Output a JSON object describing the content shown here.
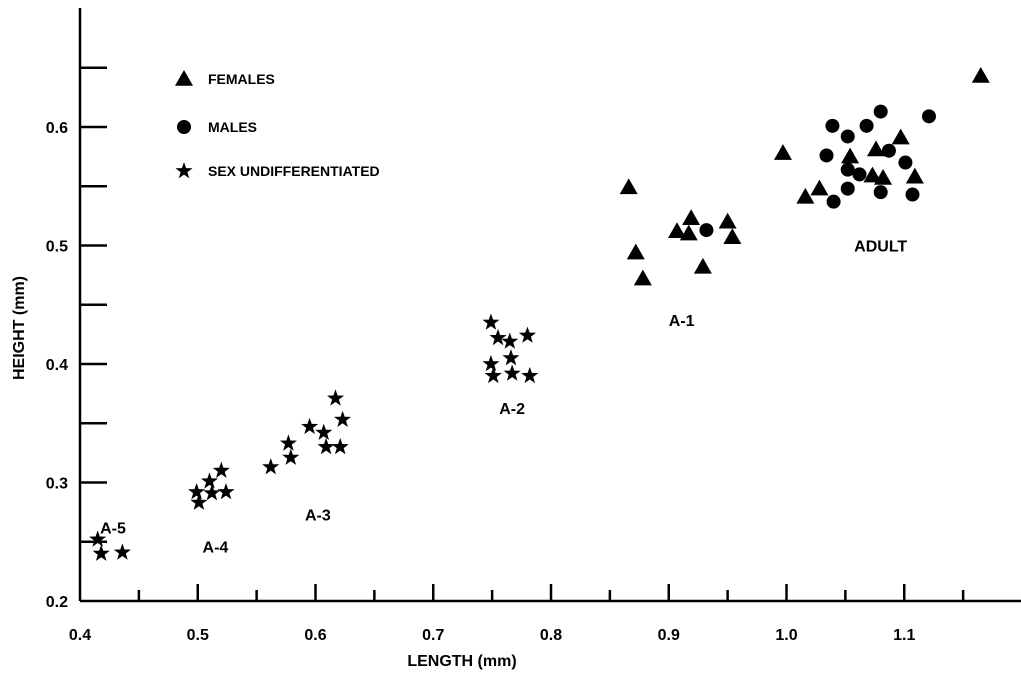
{
  "chart_data": {
    "type": "scatter",
    "xlabel": "LENGTH (mm)",
    "ylabel": "HEIGHT (mm)",
    "xlim": [
      0.4,
      1.18
    ],
    "ylim": [
      0.2,
      0.65
    ],
    "x_ticks": [
      "0.4",
      "0.5",
      "0.6",
      "0.7",
      "0.8",
      "0.9",
      "1.0",
      "1.1"
    ],
    "y_ticks": [
      "0.2",
      "0.3",
      "0.4",
      "0.5",
      "0.6"
    ],
    "legend": "top-left",
    "series": [
      {
        "name": "FEMALES",
        "marker": "triangle",
        "points": [
          [
            0.866,
            0.549
          ],
          [
            0.872,
            0.494
          ],
          [
            0.878,
            0.472
          ],
          [
            0.907,
            0.512
          ],
          [
            0.917,
            0.51
          ],
          [
            0.919,
            0.523
          ],
          [
            0.929,
            0.482
          ],
          [
            0.95,
            0.52
          ],
          [
            0.954,
            0.507
          ],
          [
            0.997,
            0.578
          ],
          [
            1.016,
            0.541
          ],
          [
            1.028,
            0.548
          ],
          [
            1.054,
            0.575
          ],
          [
            1.073,
            0.559
          ],
          [
            1.076,
            0.581
          ],
          [
            1.082,
            0.557
          ],
          [
            1.097,
            0.591
          ],
          [
            1.109,
            0.558
          ],
          [
            1.165,
            0.643
          ]
        ]
      },
      {
        "name": "MALES",
        "marker": "circle",
        "points": [
          [
            0.932,
            0.513
          ],
          [
            1.034,
            0.576
          ],
          [
            1.039,
            0.601
          ],
          [
            1.04,
            0.537
          ],
          [
            1.052,
            0.592
          ],
          [
            1.052,
            0.564
          ],
          [
            1.052,
            0.548
          ],
          [
            1.062,
            0.56
          ],
          [
            1.068,
            0.601
          ],
          [
            1.08,
            0.613
          ],
          [
            1.08,
            0.545
          ],
          [
            1.087,
            0.58
          ],
          [
            1.101,
            0.57
          ],
          [
            1.107,
            0.543
          ],
          [
            1.121,
            0.609
          ]
        ]
      },
      {
        "name": "SEX UNDIFFERENTIATED",
        "marker": "star",
        "points": [
          [
            0.415,
            0.252
          ],
          [
            0.418,
            0.24
          ],
          [
            0.436,
            0.241
          ],
          [
            0.499,
            0.292
          ],
          [
            0.501,
            0.283
          ],
          [
            0.51,
            0.301
          ],
          [
            0.512,
            0.291
          ],
          [
            0.52,
            0.31
          ],
          [
            0.524,
            0.292
          ],
          [
            0.562,
            0.313
          ],
          [
            0.577,
            0.333
          ],
          [
            0.579,
            0.321
          ],
          [
            0.595,
            0.347
          ],
          [
            0.607,
            0.342
          ],
          [
            0.609,
            0.33
          ],
          [
            0.617,
            0.371
          ],
          [
            0.621,
            0.33
          ],
          [
            0.623,
            0.353
          ],
          [
            0.749,
            0.435
          ],
          [
            0.749,
            0.4
          ],
          [
            0.751,
            0.39
          ],
          [
            0.755,
            0.422
          ],
          [
            0.765,
            0.419
          ],
          [
            0.766,
            0.405
          ],
          [
            0.767,
            0.392
          ],
          [
            0.78,
            0.424
          ],
          [
            0.782,
            0.39
          ]
        ]
      }
    ],
    "annotations": [
      {
        "text": "A-5",
        "x": 0.428,
        "y": 0.257
      },
      {
        "text": "A-4",
        "x": 0.515,
        "y": 0.241
      },
      {
        "text": "A-3",
        "x": 0.602,
        "y": 0.268
      },
      {
        "text": "A-2",
        "x": 0.767,
        "y": 0.358
      },
      {
        "text": "A-1",
        "x": 0.911,
        "y": 0.432
      },
      {
        "text": "ADULT",
        "x": 1.08,
        "y": 0.495
      }
    ]
  }
}
